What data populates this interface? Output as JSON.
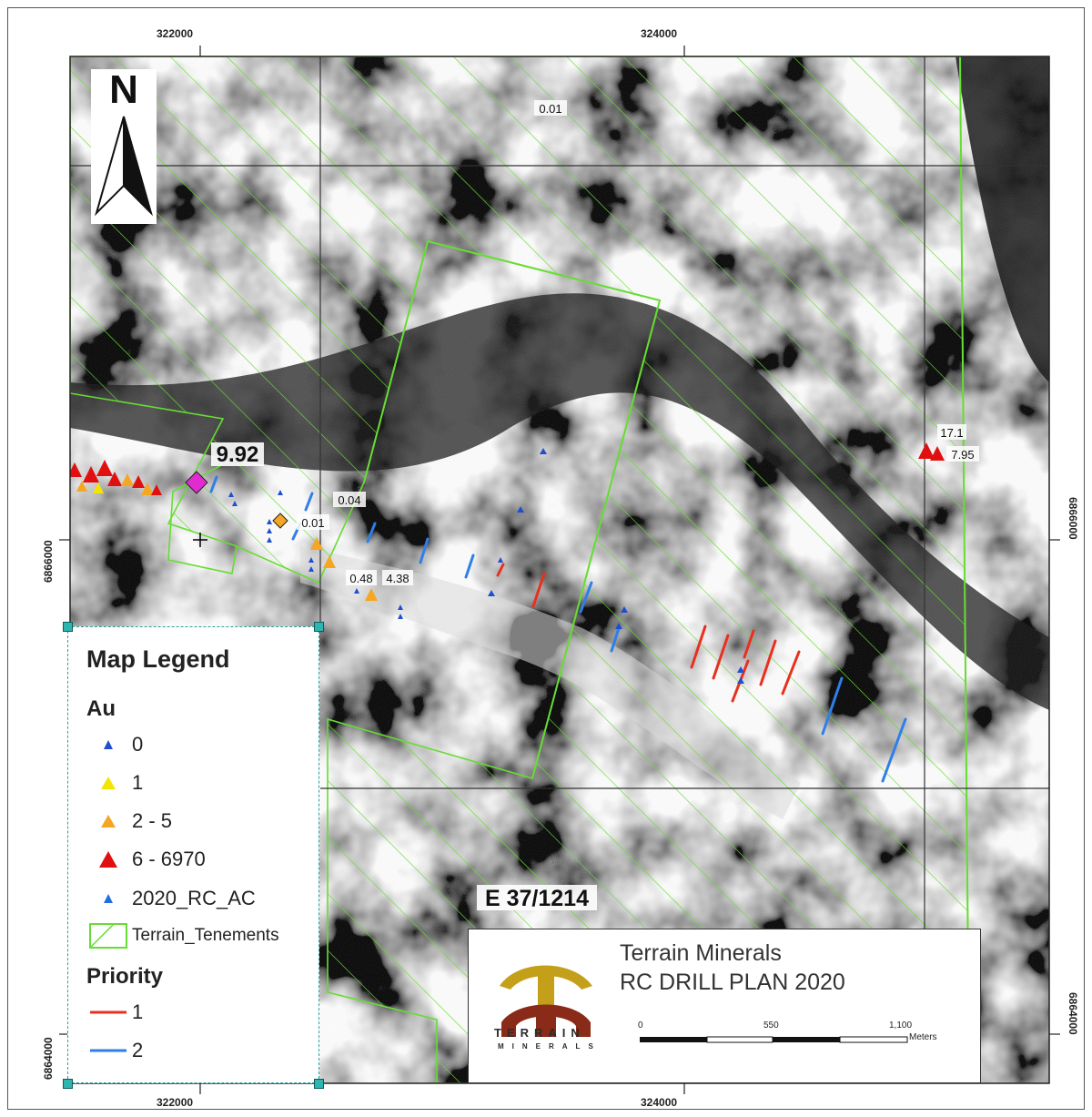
{
  "grid": {
    "top_labels": [
      "322000",
      "324000"
    ],
    "bottom_labels": [
      "322000",
      "324000"
    ],
    "left_labels": [
      "6866000",
      "6864000"
    ],
    "right_labels": [
      "6866000",
      "6864000"
    ]
  },
  "north_arrow": {
    "label": "N"
  },
  "map_labels": {
    "tenement": "E 37/1214",
    "value_large": "9.92",
    "value_001_top": "0.01",
    "value_004": "0.04",
    "value_001_mid": "0.01",
    "value_048": "0.48",
    "value_438": "4.38",
    "value_171": "17.1",
    "value_795": "7.95"
  },
  "legend": {
    "title": "Map Legend",
    "au_heading": "Au",
    "au_items": [
      {
        "label": "0",
        "color": "#1f4fd0",
        "size": "small"
      },
      {
        "label": "1",
        "color": "#f2e600",
        "size": "medium"
      },
      {
        "label": "2 - 5",
        "color": "#f5a623",
        "size": "medium"
      },
      {
        "label": "6 - 6970",
        "color": "#e01010",
        "size": "large"
      }
    ],
    "rc_label": "2020_RC_AC",
    "rc_color": "#1f6fe0",
    "tenements_label": "Terrain_Tenements",
    "tenements_color": "#66dd33",
    "priority_heading": "Priority",
    "priority_items": [
      {
        "label": "1",
        "color": "#e8301f"
      },
      {
        "label": "2",
        "color": "#2f7fe8"
      }
    ]
  },
  "title_block": {
    "company": "Terrain Minerals",
    "plan": "RC DRILL PLAN 2020",
    "logo_text": "TERRAIN",
    "logo_sub": "MINERALS",
    "scale_labels": [
      "0",
      "550",
      "1,100"
    ],
    "scale_unit": "Meters",
    "logo_colors": {
      "arch": "#c4a01a",
      "body": "#8a2a18"
    }
  }
}
